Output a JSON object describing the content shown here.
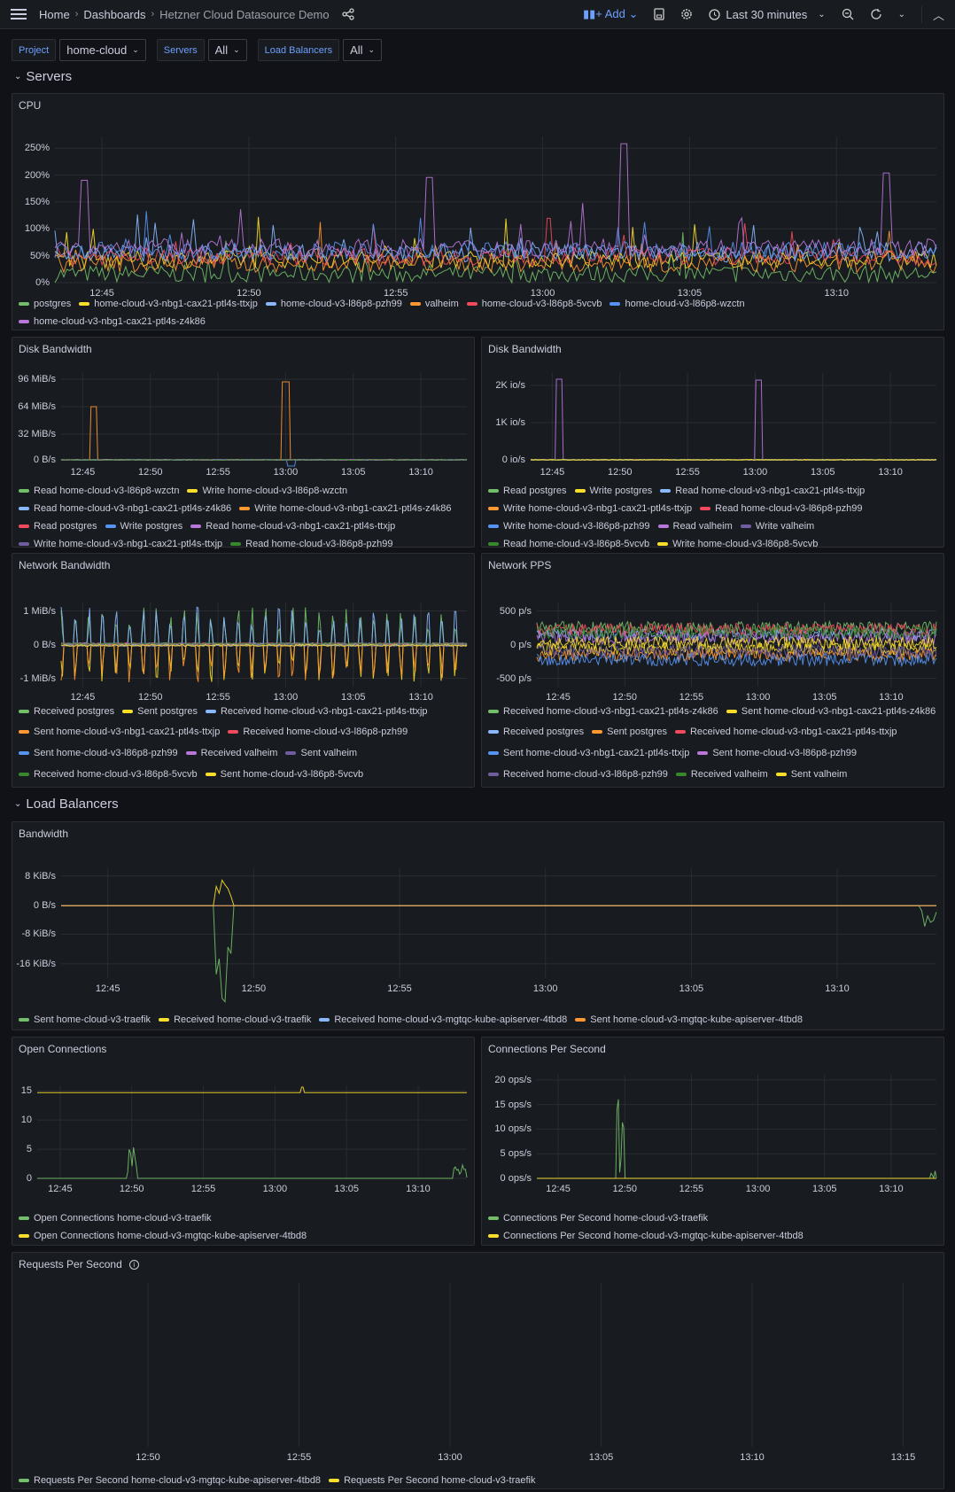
{
  "topbar": {
    "breadcrumbs": [
      "Home",
      "Dashboards",
      "Hetzner Cloud Datasource Demo"
    ],
    "add_label": "Add",
    "time_range": "Last 30 minutes",
    "icons": [
      "menu-icon",
      "share-icon",
      "save-icon",
      "gear-icon",
      "clock-icon",
      "zoom-out-icon",
      "refresh-icon",
      "chevron-up-icon"
    ]
  },
  "variables": [
    {
      "label": "Project",
      "value": "home-cloud"
    },
    {
      "label": "Servers",
      "value": "All"
    },
    {
      "label": "Load Balancers",
      "value": "All"
    }
  ],
  "rows": {
    "servers": "Servers",
    "load_balancers": "Load Balancers"
  },
  "colors": {
    "accent": "#6e9fff",
    "background": "#111217",
    "panel": "#181b1f"
  },
  "panels": [
    {
      "title": "CPU",
      "yticks": [
        "250%",
        "200%",
        "150%",
        "100%",
        "50%",
        "0%"
      ],
      "xticks": [
        "12:45",
        "12:50",
        "12:55",
        "13:00",
        "13:05",
        "13:10"
      ],
      "legend": [
        {
          "label": "postgres",
          "color": "#73bf69"
        },
        {
          "label": "home-cloud-v3-nbg1-cax21-ptl4s-ttxjp",
          "color": "#fade2a"
        },
        {
          "label": "home-cloud-v3-l86p8-pzh99",
          "color": "#8ab8ff"
        },
        {
          "label": "valheim",
          "color": "#ff9830"
        },
        {
          "label": "home-cloud-v3-l86p8-5vcvb",
          "color": "#f2495c"
        },
        {
          "label": "home-cloud-v3-l86p8-wzctn",
          "color": "#5794f2"
        },
        {
          "label": "home-cloud-v3-nbg1-cax21-ptl4s-z4k86",
          "color": "#b877d9"
        }
      ]
    },
    {
      "title": "Disk Bandwidth",
      "yticks": [
        "96 MiB/s",
        "64 MiB/s",
        "32 MiB/s",
        "0 B/s"
      ],
      "xticks": [
        "12:45",
        "12:50",
        "12:55",
        "13:00",
        "13:05",
        "13:10"
      ],
      "legend": [
        {
          "label": "Read home-cloud-v3-l86p8-wzctn",
          "color": "#73bf69"
        },
        {
          "label": "Write home-cloud-v3-l86p8-wzctn",
          "color": "#fade2a"
        },
        {
          "label": "Read home-cloud-v3-nbg1-cax21-ptl4s-z4k86",
          "color": "#8ab8ff"
        },
        {
          "label": "Write home-cloud-v3-nbg1-cax21-ptl4s-z4k86",
          "color": "#ff9830"
        },
        {
          "label": "Read postgres",
          "color": "#f2495c"
        },
        {
          "label": "Write postgres",
          "color": "#5794f2"
        },
        {
          "label": "Read home-cloud-v3-nbg1-cax21-ptl4s-ttxjp",
          "color": "#b877d9"
        },
        {
          "label": "Write home-cloud-v3-nbg1-cax21-ptl4s-ttxjp",
          "color": "#705da0"
        },
        {
          "label": "Read home-cloud-v3-l86p8-pzh99",
          "color": "#37872d"
        }
      ]
    },
    {
      "title": "Disk Bandwidth",
      "yticks": [
        "2K io/s",
        "1K io/s",
        "0 io/s"
      ],
      "xticks": [
        "12:45",
        "12:50",
        "12:55",
        "13:00",
        "13:05",
        "13:10"
      ],
      "legend": [
        {
          "label": "Read postgres",
          "color": "#73bf69"
        },
        {
          "label": "Write postgres",
          "color": "#fade2a"
        },
        {
          "label": "Read home-cloud-v3-nbg1-cax21-ptl4s-ttxjp",
          "color": "#8ab8ff"
        },
        {
          "label": "Write home-cloud-v3-nbg1-cax21-ptl4s-ttxjp",
          "color": "#ff9830"
        },
        {
          "label": "Read home-cloud-v3-l86p8-pzh99",
          "color": "#f2495c"
        },
        {
          "label": "Write home-cloud-v3-l86p8-pzh99",
          "color": "#5794f2"
        },
        {
          "label": "Read valheim",
          "color": "#b877d9"
        },
        {
          "label": "Write valheim",
          "color": "#705da0"
        },
        {
          "label": "Read home-cloud-v3-l86p8-5vcvb",
          "color": "#37872d"
        },
        {
          "label": "Write home-cloud-v3-l86p8-5vcvb",
          "color": "#fade2a"
        }
      ]
    },
    {
      "title": "Network Bandwidth",
      "yticks": [
        "1 MiB/s",
        "0 B/s",
        "-1 MiB/s"
      ],
      "xticks": [
        "12:45",
        "12:50",
        "12:55",
        "13:00",
        "13:05",
        "13:10"
      ],
      "legend": [
        {
          "label": "Received postgres",
          "color": "#73bf69"
        },
        {
          "label": "Sent postgres",
          "color": "#fade2a"
        },
        {
          "label": "Received home-cloud-v3-nbg1-cax21-ptl4s-ttxjp",
          "color": "#8ab8ff"
        },
        {
          "label": "Sent home-cloud-v3-nbg1-cax21-ptl4s-ttxjp",
          "color": "#ff9830"
        },
        {
          "label": "Received home-cloud-v3-l86p8-pzh99",
          "color": "#f2495c"
        },
        {
          "label": "Sent home-cloud-v3-l86p8-pzh99",
          "color": "#5794f2"
        },
        {
          "label": "Received valheim",
          "color": "#b877d9"
        },
        {
          "label": "Sent valheim",
          "color": "#705da0"
        },
        {
          "label": "Received home-cloud-v3-l86p8-5vcvb",
          "color": "#37872d"
        },
        {
          "label": "Sent home-cloud-v3-l86p8-5vcvb",
          "color": "#fade2a"
        }
      ]
    },
    {
      "title": "Network PPS",
      "yticks": [
        "500 p/s",
        "0 p/s",
        "-500 p/s"
      ],
      "xticks": [
        "12:45",
        "12:50",
        "12:55",
        "13:00",
        "13:05",
        "13:10"
      ],
      "legend": [
        {
          "label": "Received home-cloud-v3-nbg1-cax21-ptl4s-z4k86",
          "color": "#73bf69"
        },
        {
          "label": "Sent home-cloud-v3-nbg1-cax21-ptl4s-z4k86",
          "color": "#fade2a"
        },
        {
          "label": "Received postgres",
          "color": "#8ab8ff"
        },
        {
          "label": "Sent postgres",
          "color": "#ff9830"
        },
        {
          "label": "Received home-cloud-v3-nbg1-cax21-ptl4s-ttxjp",
          "color": "#f2495c"
        },
        {
          "label": "Sent home-cloud-v3-nbg1-cax21-ptl4s-ttxjp",
          "color": "#5794f2"
        },
        {
          "label": "Sent home-cloud-v3-l86p8-pzh99",
          "color": "#b877d9"
        },
        {
          "label": "Received home-cloud-v3-l86p8-pzh99",
          "color": "#705da0"
        },
        {
          "label": "Received valheim",
          "color": "#37872d"
        },
        {
          "label": "Sent valheim",
          "color": "#fade2a"
        }
      ]
    },
    {
      "title": "Bandwidth",
      "yticks": [
        "8 KiB/s",
        "0 B/s",
        "-8 KiB/s",
        "-16 KiB/s"
      ],
      "xticks": [
        "12:45",
        "12:50",
        "12:55",
        "13:00",
        "13:05",
        "13:10"
      ],
      "legend": [
        {
          "label": "Sent home-cloud-v3-traefik",
          "color": "#73bf69"
        },
        {
          "label": "Received home-cloud-v3-traefik",
          "color": "#fade2a"
        },
        {
          "label": "Received home-cloud-v3-mgtqc-kube-apiserver-4tbd8",
          "color": "#8ab8ff"
        },
        {
          "label": "Sent home-cloud-v3-mgtqc-kube-apiserver-4tbd8",
          "color": "#ff9830"
        }
      ]
    },
    {
      "title": "Open Connections",
      "yticks": [
        "15",
        "10",
        "5",
        "0"
      ],
      "xticks": [
        "12:45",
        "12:50",
        "12:55",
        "13:00",
        "13:05",
        "13:10"
      ],
      "legend": [
        {
          "label": "Open Connections home-cloud-v3-traefik",
          "color": "#73bf69"
        },
        {
          "label": "Open Connections home-cloud-v3-mgtqc-kube-apiserver-4tbd8",
          "color": "#fade2a"
        }
      ]
    },
    {
      "title": "Connections Per Second",
      "yticks": [
        "20 ops/s",
        "15 ops/s",
        "10 ops/s",
        "5 ops/s",
        "0 ops/s"
      ],
      "xticks": [
        "12:45",
        "12:50",
        "12:55",
        "13:00",
        "13:05",
        "13:10"
      ],
      "legend": [
        {
          "label": "Connections Per Second home-cloud-v3-traefik",
          "color": "#73bf69"
        },
        {
          "label": "Connections Per Second home-cloud-v3-mgtqc-kube-apiserver-4tbd8",
          "color": "#fade2a"
        }
      ]
    },
    {
      "title": "Requests Per Second",
      "yticks": [],
      "xticks": [
        "12:50",
        "12:55",
        "13:00",
        "13:05",
        "13:10",
        "13:15"
      ],
      "legend": [
        {
          "label": "Requests Per Second home-cloud-v3-mgtqc-kube-apiserver-4tbd8",
          "color": "#73bf69"
        },
        {
          "label": "Requests Per Second home-cloud-v3-traefik",
          "color": "#fade2a"
        }
      ]
    }
  ]
}
